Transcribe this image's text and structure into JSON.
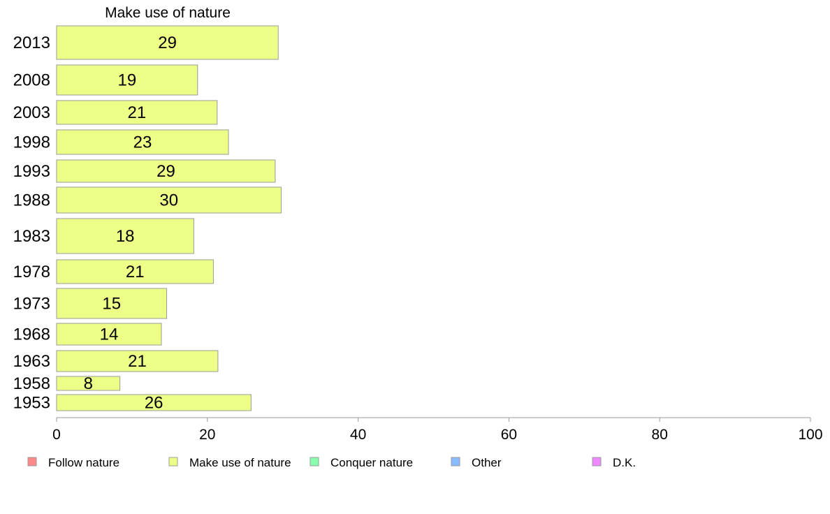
{
  "chart_data": {
    "type": "bar",
    "orientation": "horizontal",
    "title": "Make use of nature",
    "categories": [
      "2013",
      "2008",
      "2003",
      "1998",
      "1993",
      "1988",
      "1983",
      "1978",
      "1973",
      "1968",
      "1963",
      "1958",
      "1953"
    ],
    "values": [
      29,
      19,
      21,
      23,
      29,
      30,
      18,
      21,
      15,
      14,
      21,
      8,
      26
    ],
    "bar_values": [
      29.4,
      18.7,
      21.3,
      22.8,
      29.0,
      29.8,
      18.2,
      20.8,
      14.6,
      13.9,
      21.4,
      8.4,
      25.8
    ],
    "xlim": [
      0,
      100
    ],
    "xticks": [
      0,
      20,
      40,
      60,
      80,
      100
    ],
    "xlabel": "",
    "ylabel": "",
    "grid": false,
    "bar_color": "#eeff88",
    "bar_border": "#999999",
    "legend": {
      "placement": "bottom",
      "entries": [
        {
          "label": "Follow nature",
          "color": "#ff8888"
        },
        {
          "label": "Make use of nature",
          "color": "#eeff88"
        },
        {
          "label": "Conquer nature",
          "color": "#88ffaa"
        },
        {
          "label": "Other",
          "color": "#88bbff"
        },
        {
          "label": "D.K.",
          "color": "#ee88ff"
        }
      ]
    }
  }
}
